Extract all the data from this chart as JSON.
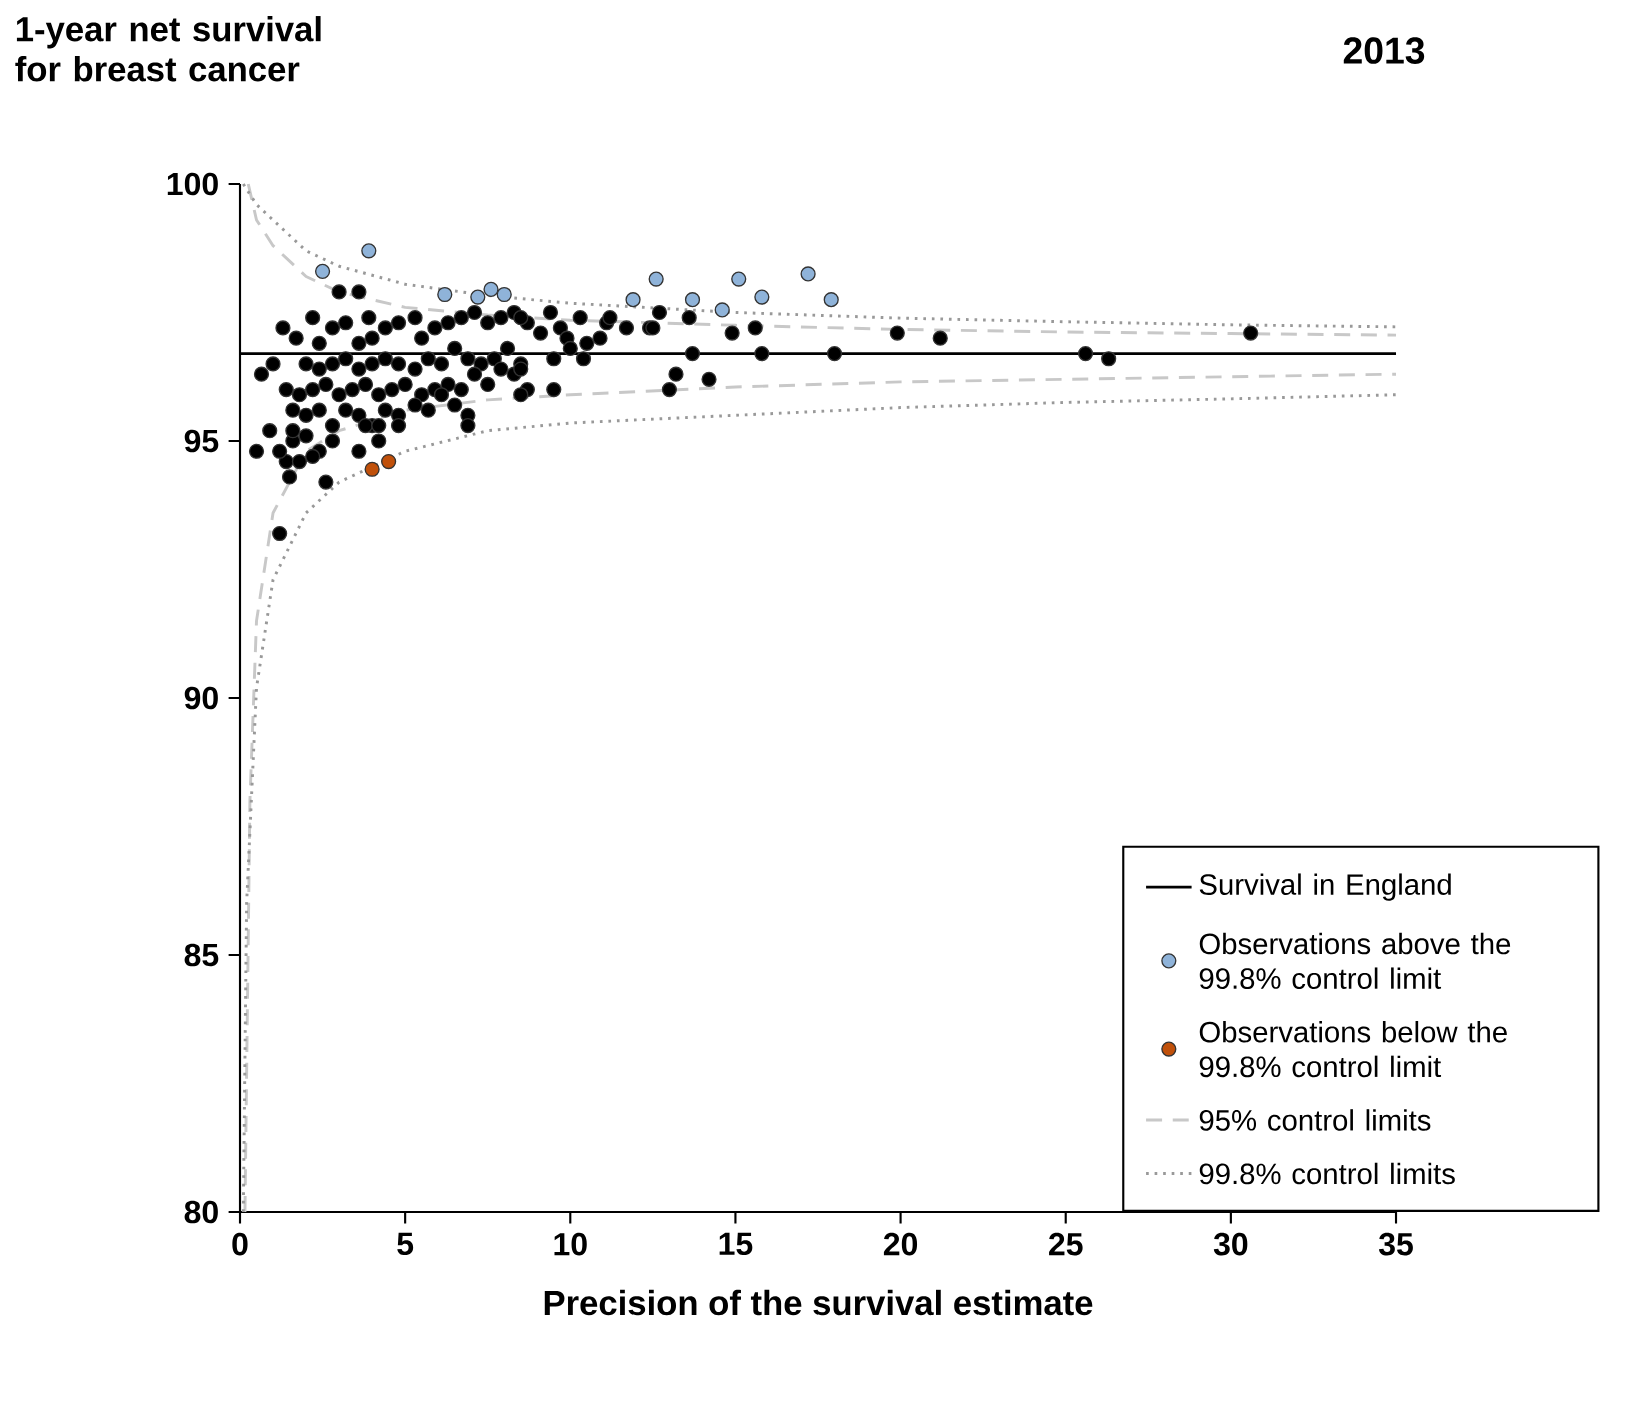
{
  "chart_data": {
    "type": "scatter",
    "title": "2013",
    "xlabel": "Precision of the survival estimate",
    "ylabel": "1-year net survival for breast cancer",
    "xlim": [
      0,
      35
    ],
    "ylim": [
      80,
      100
    ],
    "xticks": [
      0,
      5,
      10,
      15,
      20,
      25,
      30,
      35
    ],
    "yticks": [
      80,
      85,
      90,
      95,
      100
    ],
    "grid": false,
    "legend": "bottom right",
    "series": [
      {
        "name": "Survival in England",
        "type": "line",
        "marker": "none",
        "line_style": "solid",
        "color": "#000000",
        "x": [
          0,
          35
        ],
        "values": [
          96.7,
          96.7
        ]
      },
      {
        "name": "Observations above the 99.8% control limit",
        "type": "scatter",
        "marker": "circle",
        "color": "#8fb3d9",
        "x": [
          2.5,
          3.9,
          6.2,
          7.2,
          7.6,
          8.0,
          12.6,
          11.9,
          13.7,
          15.1,
          14.6,
          15.8,
          17.2,
          17.9
        ],
        "values": [
          98.3,
          98.7,
          97.85,
          97.8,
          97.95,
          97.85,
          98.15,
          97.75,
          97.75,
          98.15,
          97.55,
          97.8,
          98.25,
          97.75
        ]
      },
      {
        "name": "Observations below the 99.8% control limit",
        "type": "scatter",
        "marker": "circle",
        "color": "#c0500a",
        "x": [
          4.0,
          4.5
        ],
        "values": [
          94.45,
          94.6
        ]
      },
      {
        "name": "95% control limits",
        "type": "line",
        "marker": "none",
        "line_style": "dashed",
        "color": "#c8c8c8",
        "x": [
          0.25,
          0.5,
          1,
          2,
          3,
          5,
          7.5,
          10,
          15,
          20,
          25,
          30,
          35
        ],
        "values": [
          100,
          99.3,
          98.8,
          98.2,
          97.9,
          97.6,
          97.45,
          97.35,
          97.25,
          97.17,
          97.12,
          97.09,
          97.06
        ]
      },
      {
        "name": "99.8% control limits",
        "type": "line",
        "marker": "none",
        "line_style": "dotted",
        "color": "#999999",
        "x": [
          0.1,
          0.5,
          1,
          2,
          3,
          5,
          7.5,
          10,
          15,
          20,
          25,
          30,
          35
        ],
        "values": [
          100,
          99.6,
          99.3,
          98.7,
          98.4,
          98.05,
          97.83,
          97.68,
          97.5,
          97.39,
          97.32,
          97.26,
          97.22
        ]
      },
      {
        "type": "line",
        "marker": "none",
        "line_style": "dashed",
        "color": "#c8c8c8",
        "x": [
          0.15,
          0.3,
          0.5,
          1,
          2,
          3,
          5,
          7.5,
          10,
          15,
          20,
          25,
          30,
          35
        ],
        "values": [
          80,
          88,
          91.5,
          93.6,
          94.8,
          95.2,
          95.6,
          95.8,
          95.9,
          96.05,
          96.15,
          96.2,
          96.25,
          96.3
        ]
      },
      {
        "type": "line",
        "marker": "none",
        "line_style": "dotted",
        "color": "#999999",
        "x": [
          0.1,
          0.2,
          0.5,
          1,
          2,
          3,
          5,
          7.5,
          10,
          15,
          20,
          25,
          30,
          35
        ],
        "values": [
          80,
          86,
          90.2,
          92.3,
          93.6,
          94.2,
          94.8,
          95.2,
          95.35,
          95.5,
          95.65,
          95.75,
          95.82,
          95.9
        ]
      },
      {
        "type": "scatter",
        "marker": "circle",
        "color": "#000000",
        "x": [
          1.2,
          0.65,
          0.5,
          0.9,
          1.4,
          2.6,
          3.0,
          3.6,
          3.9,
          1.3,
          1.7,
          2.2,
          2.4,
          2.8,
          3.2,
          3.6,
          4.0,
          4.4,
          4.8,
          5.3,
          5.5,
          5.9,
          6.3,
          6.7,
          7.1,
          7.5,
          7.9,
          8.3,
          8.7,
          2.0,
          2.4,
          2.8,
          3.2,
          3.6,
          4.0,
          4.4,
          4.8,
          5.3,
          5.7,
          6.1,
          6.5,
          6.9,
          7.3,
          7.7,
          8.1,
          8.5,
          1.4,
          1.8,
          2.2,
          2.6,
          3.0,
          3.4,
          3.8,
          4.2,
          4.6,
          5.0,
          5.5,
          5.9,
          6.3,
          6.7,
          7.1,
          7.5,
          7.9,
          8.3,
          8.7,
          1.6,
          2.0,
          2.4,
          2.8,
          3.2,
          3.6,
          4.0,
          4.4,
          4.8,
          5.3,
          5.7,
          6.1,
          6.5,
          6.9,
          1.6,
          2.0,
          2.4,
          2.8,
          3.6,
          4.2,
          1.8,
          2.2,
          1.5,
          3.8,
          4.2,
          4.8,
          6.9,
          1.0,
          1.6,
          1.2,
          8.5,
          9.4,
          9.7,
          10.3,
          11.1,
          9.1,
          9.9,
          10.5,
          10.9,
          9.5,
          10.0,
          8.5,
          8.5,
          11.7,
          12.4,
          11.2,
          13.7,
          15.8,
          18.0,
          14.9,
          15.6,
          14.2,
          13.2,
          13.0,
          13.6,
          12.7,
          12.5,
          9.5,
          10.4,
          19.9,
          21.2,
          25.6,
          26.3,
          30.6
        ],
        "values": [
          93.2,
          96.3,
          94.8,
          95.2,
          94.6,
          94.2,
          97.9,
          97.9,
          97.4,
          97.2,
          97.0,
          97.4,
          96.9,
          97.2,
          97.3,
          96.9,
          97.0,
          97.2,
          97.3,
          97.4,
          97.0,
          97.2,
          97.3,
          97.4,
          97.5,
          97.3,
          97.4,
          97.5,
          97.3,
          96.5,
          96.4,
          96.5,
          96.6,
          96.4,
          96.5,
          96.6,
          96.5,
          96.4,
          96.6,
          96.5,
          96.8,
          96.6,
          96.5,
          96.6,
          96.8,
          96.5,
          96.0,
          95.9,
          96.0,
          96.1,
          95.9,
          96.0,
          96.1,
          95.9,
          96.0,
          96.1,
          95.9,
          96.0,
          96.1,
          96.0,
          96.3,
          96.1,
          96.4,
          96.3,
          96.0,
          95.6,
          95.5,
          95.6,
          95.3,
          95.6,
          95.5,
          95.3,
          95.6,
          95.5,
          95.7,
          95.6,
          95.9,
          95.7,
          95.5,
          95.0,
          95.1,
          94.8,
          95.0,
          94.8,
          95.0,
          94.6,
          94.7,
          94.3,
          95.3,
          95.3,
          95.3,
          95.3,
          96.5,
          95.2,
          94.8,
          97.4,
          97.5,
          97.2,
          97.4,
          97.3,
          97.1,
          97.0,
          96.9,
          97.0,
          96.6,
          96.8,
          96.4,
          95.9,
          97.2,
          97.2,
          97.4,
          96.7,
          96.7,
          96.7,
          97.1,
          97.2,
          96.2,
          96.3,
          96.0,
          97.4,
          97.5,
          97.2,
          96.0,
          96.6,
          97.1,
          97.0,
          96.7,
          96.6,
          97.1
        ]
      }
    ]
  }
}
